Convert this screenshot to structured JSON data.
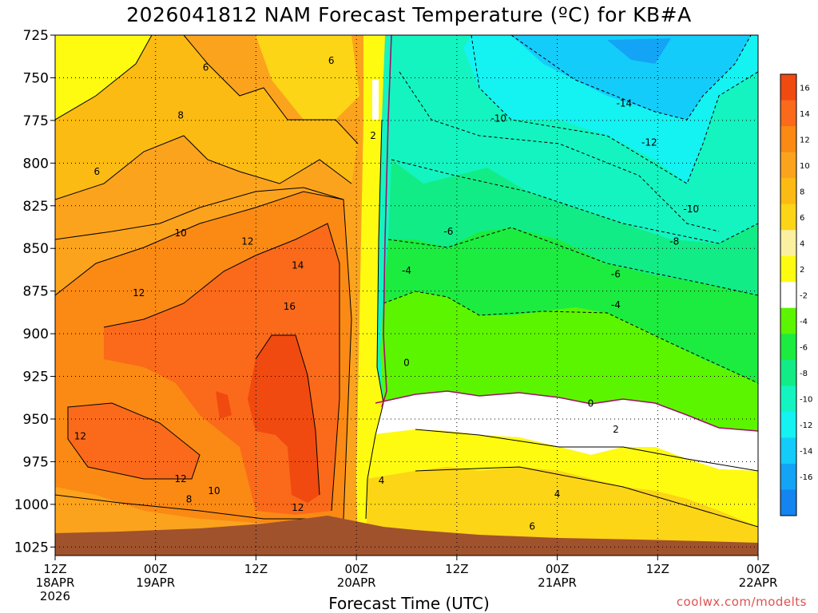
{
  "chart_data": {
    "type": "contour",
    "title": "2026041812 NAM Forecast Temperature (ºC) for KB#A",
    "xlabel": "Forecast Time (UTC)",
    "credit": "coolwx.com/modelts",
    "y_levels": [
      725,
      750,
      775,
      800,
      825,
      850,
      875,
      900,
      925,
      950,
      975,
      1000,
      1025
    ],
    "y_range": [
      725,
      1030
    ],
    "x_range_hours": [
      0,
      84
    ],
    "x_ticks": [
      {
        "hour": 0,
        "lines": [
          "12Z",
          "18APR",
          "2026"
        ]
      },
      {
        "hour": 12,
        "lines": [
          "00Z",
          "19APR"
        ]
      },
      {
        "hour": 24,
        "lines": [
          "12Z"
        ]
      },
      {
        "hour": 36,
        "lines": [
          "00Z",
          "20APR"
        ]
      },
      {
        "hour": 48,
        "lines": [
          "12Z"
        ]
      },
      {
        "hour": 60,
        "lines": [
          "00Z",
          "21APR"
        ]
      },
      {
        "hour": 72,
        "lines": [
          "12Z"
        ]
      },
      {
        "hour": 84,
        "lines": [
          "00Z",
          "22APR"
        ]
      }
    ],
    "colorbar": {
      "labels": [
        "16",
        "14",
        "12",
        "10",
        "8",
        "6",
        "4",
        "2",
        "-2",
        "-4",
        "-6",
        "-8",
        "-10",
        "-12",
        "-14",
        "-16"
      ],
      "colors": [
        "#f04a10",
        "#fa6a1a",
        "#fa8a14",
        "#fca31e",
        "#fcbb12",
        "#fcd516",
        "#fcf0a0",
        "#fffb10",
        "#ffffff",
        "#5cf500",
        "#1cec40",
        "#12ec86",
        "#14f4c0",
        "#14f2f2",
        "#14ccfa",
        "#14a4f5",
        "#1484f0"
      ]
    },
    "contour_labels": [
      {
        "text": "6",
        "hour": 18,
        "p": 744
      },
      {
        "text": "6",
        "hour": 33,
        "p": 740
      },
      {
        "text": "8",
        "hour": 15,
        "p": 772
      },
      {
        "text": "6",
        "hour": 5,
        "p": 805
      },
      {
        "text": "10",
        "hour": 15,
        "p": 841
      },
      {
        "text": "12",
        "hour": 23,
        "p": 846
      },
      {
        "text": "14",
        "hour": 29,
        "p": 860
      },
      {
        "text": "12",
        "hour": 10,
        "p": 876
      },
      {
        "text": "16",
        "hour": 28,
        "p": 884
      },
      {
        "text": "2",
        "hour": 38,
        "p": 784
      },
      {
        "text": "-4",
        "hour": 42,
        "p": 863
      },
      {
        "text": "-6",
        "hour": 47,
        "p": 840
      },
      {
        "text": "-10",
        "hour": 53,
        "p": 774
      },
      {
        "text": "-14",
        "hour": 68,
        "p": 765
      },
      {
        "text": "-12",
        "hour": 71,
        "p": 788
      },
      {
        "text": "-10",
        "hour": 76,
        "p": 827
      },
      {
        "text": "-8",
        "hour": 74,
        "p": 846
      },
      {
        "text": "-6",
        "hour": 67,
        "p": 865
      },
      {
        "text": "-4",
        "hour": 67,
        "p": 883
      },
      {
        "text": "0",
        "hour": 42,
        "p": 917
      },
      {
        "text": "0",
        "hour": 64,
        "p": 941
      },
      {
        "text": "2",
        "hour": 67,
        "p": 956
      },
      {
        "text": "12",
        "hour": 3,
        "p": 960
      },
      {
        "text": "12",
        "hour": 15,
        "p": 985
      },
      {
        "text": "10",
        "hour": 19,
        "p": 992
      },
      {
        "text": "8",
        "hour": 16,
        "p": 997
      },
      {
        "text": "12",
        "hour": 29,
        "p": 1002
      },
      {
        "text": "4",
        "hour": 39,
        "p": 986
      },
      {
        "text": "4",
        "hour": 60,
        "p": 994
      },
      {
        "text": "6",
        "hour": 57,
        "p": 1013
      }
    ]
  }
}
